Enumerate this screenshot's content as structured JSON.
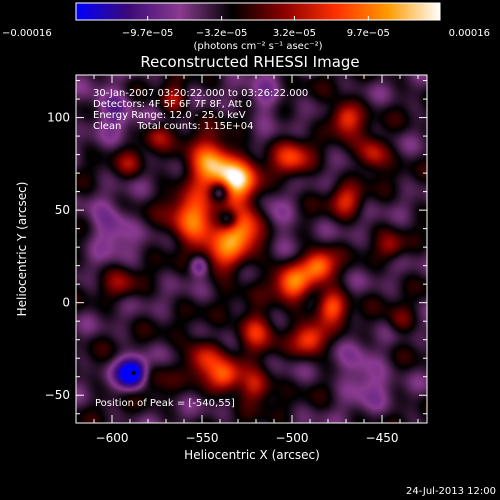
{
  "chart_data": {
    "type": "heatmap",
    "title": "Reconstructed RHESSI Image",
    "xlabel": "Heliocentric X (arcsec)",
    "ylabel": "Heliocentric Y (arcsec)",
    "xlim": [
      -620,
      -425
    ],
    "ylim": [
      -65,
      123
    ],
    "x_ticks": [
      -600,
      -550,
      -500,
      -450
    ],
    "x_tick_labels": [
      "−600",
      "−550",
      "−500",
      "−450"
    ],
    "y_ticks": [
      -50,
      0,
      50,
      100
    ],
    "y_tick_labels": [
      "−50",
      "0",
      "50",
      "100"
    ],
    "colorbar": {
      "range": [
        -0.00016,
        0.00016
      ],
      "ticks": [
        -0.00016,
        -9.7e-05,
        -3.2e-05,
        3.2e-05,
        9.7e-05,
        0.00016
      ],
      "tick_labels": [
        "−0.00016",
        "−9.7e−05",
        "−3.2e−05",
        "3.2e−05",
        "9.7e−05",
        "0.00016"
      ],
      "unit_label": "(photons cm⁻² s⁻¹ asec⁻²)",
      "colors": [
        "#0000ff",
        "#3a0a78",
        "#8a3a90",
        "#000000",
        "#8a0000",
        "#ff3000",
        "#ff9a00",
        "#ffffff"
      ]
    },
    "annotations": [
      "30-Jan-2007 03:20:22.000 to 03:26:22.000",
      "Detectors: 4F 5F 6F 7F 8F, Att 0",
      "Energy Range: 12.0 - 25.0 keV",
      "Clean     Total counts: 1.15E+04"
    ],
    "peak_label": "Position of Peak = [-540,55]",
    "footer_date": "24-Jul-2013 12:00",
    "sources": [
      {
        "x": -545,
        "y": 75,
        "amp": 1.0,
        "sigma": 9
      },
      {
        "x": -530,
        "y": 65,
        "amp": 1.0,
        "sigma": 8
      },
      {
        "x": -555,
        "y": 45,
        "amp": 0.9,
        "sigma": 9
      },
      {
        "x": -528,
        "y": 40,
        "amp": 0.85,
        "sigma": 9
      },
      {
        "x": -538,
        "y": 25,
        "amp": 0.55,
        "sigma": 8
      },
      {
        "x": -500,
        "y": 10,
        "amp": 0.8,
        "sigma": 7
      },
      {
        "x": -485,
        "y": 20,
        "amp": 0.85,
        "sigma": 6
      },
      {
        "x": -478,
        "y": -2,
        "amp": 0.75,
        "sigma": 6
      },
      {
        "x": -490,
        "y": -20,
        "amp": 0.7,
        "sigma": 6
      },
      {
        "x": -520,
        "y": -15,
        "amp": 0.6,
        "sigma": 7
      },
      {
        "x": -550,
        "y": -30,
        "amp": 0.55,
        "sigma": 7
      },
      {
        "x": -537,
        "y": -40,
        "amp": 0.75,
        "sigma": 6
      },
      {
        "x": -520,
        "y": -45,
        "amp": 0.6,
        "sigma": 6
      },
      {
        "x": -580,
        "y": -40,
        "amp": 0.4,
        "sigma": 6
      },
      {
        "x": -500,
        "y": 78,
        "amp": 0.6,
        "sigma": 7
      },
      {
        "x": -470,
        "y": 100,
        "amp": 0.7,
        "sigma": 6
      },
      {
        "x": -455,
        "y": 80,
        "amp": 0.6,
        "sigma": 6
      },
      {
        "x": -470,
        "y": 55,
        "amp": 0.5,
        "sigma": 6
      },
      {
        "x": -565,
        "y": 110,
        "amp": 0.45,
        "sigma": 5
      },
      {
        "x": -575,
        "y": 90,
        "amp": 0.35,
        "sigma": 5
      },
      {
        "x": -590,
        "y": 75,
        "amp": 0.3,
        "sigma": 5
      },
      {
        "x": -595,
        "y": 10,
        "amp": 0.3,
        "sigma": 6
      },
      {
        "x": -440,
        "y": -10,
        "amp": 0.3,
        "sigma": 5
      },
      {
        "x": -445,
        "y": 30,
        "amp": 0.35,
        "sigma": 5
      },
      {
        "x": -540,
        "y": 60,
        "amp": -0.7,
        "sigma": 4
      },
      {
        "x": -535,
        "y": 45,
        "amp": -0.6,
        "sigma": 4
      },
      {
        "x": -552,
        "y": 20,
        "amp": -0.5,
        "sigma": 4
      },
      {
        "x": -588,
        "y": -38,
        "amp": -1.1,
        "sigma": 6
      },
      {
        "x": -600,
        "y": 40,
        "amp": -0.4,
        "sigma": 8
      },
      {
        "x": -510,
        "y": 45,
        "amp": -0.35,
        "sigma": 7
      },
      {
        "x": -460,
        "y": -40,
        "amp": -0.35,
        "sigma": 9
      },
      {
        "x": -600,
        "y": 105,
        "amp": -0.4,
        "sigma": 8
      },
      {
        "x": -515,
        "y": 110,
        "amp": -0.3,
        "sigma": 7
      }
    ]
  }
}
